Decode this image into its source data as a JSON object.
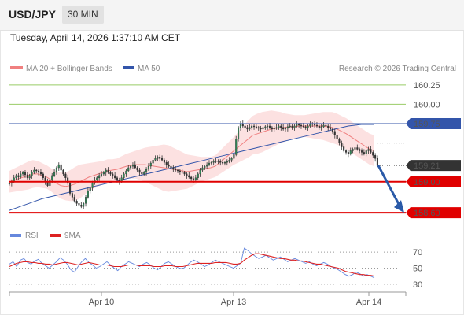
{
  "header": {
    "symbol": "USD/JPY",
    "timeframe": "30 MIN"
  },
  "timestamp": "Tuesday, April 14, 2026 1:37:10 AM CET",
  "legend": {
    "ma": "MA 20 + Bollinger Bands",
    "ma50": "MA 50",
    "rsi": "RSI",
    "ma9": "9MA",
    "credit": "Research © 2026 Trading Central"
  },
  "colors": {
    "pivot": "#e00000",
    "target": "#e00000",
    "resistance": "#99cc66",
    "ma50": "#3355aa",
    "ma20": "#f08080",
    "band": "#fcdede",
    "current": "#333333",
    "rsi": "#6688dd",
    "rsi_ma": "#dd2222",
    "arrow": "#2a5aa8"
  },
  "chart_data": [
    {
      "type": "candlestick",
      "x_ticks": [
        "Apr 10",
        "Apr 13",
        "Apr 14"
      ],
      "ylim": [
        158.55,
        160.35
      ],
      "levels": [
        {
          "value": 160.25,
          "label": "160.25",
          "kind": "resistance"
        },
        {
          "value": 160.0,
          "label": "160.00",
          "kind": "resistance"
        },
        {
          "value": 159.75,
          "label": "159.75",
          "kind": "ma50"
        },
        {
          "value": 159.21,
          "label": "159.21",
          "kind": "current"
        },
        {
          "value": 159.0,
          "label": "159.00",
          "kind": "pivot"
        },
        {
          "value": 158.6,
          "label": "158.60",
          "kind": "target"
        }
      ],
      "close": [
        158.98,
        159.0,
        159.05,
        159.08,
        159.06,
        159.1,
        159.12,
        159.09,
        159.05,
        159.08,
        159.12,
        159.15,
        159.14,
        159.12,
        159.1,
        159.05,
        159.0,
        158.95,
        159.02,
        159.08,
        159.12,
        159.18,
        159.22,
        159.15,
        159.1,
        159.05,
        158.98,
        158.85,
        158.8,
        158.75,
        158.72,
        158.7,
        158.68,
        158.72,
        158.8,
        158.88,
        158.92,
        158.98,
        159.02,
        159.05,
        159.08,
        159.1,
        159.12,
        159.15,
        159.12,
        159.1,
        159.08,
        159.05,
        159.02,
        159.0,
        159.05,
        159.1,
        159.14,
        159.18,
        159.2,
        159.22,
        159.18,
        159.15,
        159.12,
        159.1,
        159.12,
        159.16,
        159.2,
        159.24,
        159.28,
        159.3,
        159.32,
        159.3,
        159.28,
        159.25,
        159.22,
        159.2,
        159.18,
        159.16,
        159.15,
        159.14,
        159.13,
        159.12,
        159.1,
        159.08,
        159.06,
        159.04,
        159.02,
        159.05,
        159.1,
        159.15,
        159.18,
        159.2,
        159.22,
        159.24,
        159.25,
        159.26,
        159.27,
        159.26,
        159.25,
        159.24,
        159.25,
        159.26,
        159.28,
        159.3,
        159.35,
        159.55,
        159.7,
        159.75,
        159.72,
        159.7,
        159.68,
        159.7,
        159.72,
        159.71,
        159.7,
        159.69,
        159.68,
        159.7,
        159.71,
        159.72,
        159.7,
        159.68,
        159.69,
        159.7,
        159.72,
        159.7,
        159.68,
        159.69,
        159.71,
        159.72,
        159.7,
        159.72,
        159.74,
        159.73,
        159.72,
        159.71,
        159.7,
        159.72,
        159.74,
        159.75,
        159.73,
        159.72,
        159.7,
        159.71,
        159.73,
        159.72,
        159.7,
        159.68,
        159.65,
        159.6,
        159.55,
        159.5,
        159.45,
        159.4,
        159.38,
        159.36,
        159.4,
        159.42,
        159.44,
        159.42,
        159.4,
        159.38,
        159.36,
        159.4,
        159.42,
        159.38,
        159.34,
        159.3,
        159.21
      ],
      "ma20": [
        159.0,
        159.02,
        159.04,
        159.06,
        159.08,
        159.1,
        159.1,
        159.08,
        159.06,
        159.02,
        158.98,
        158.95,
        158.94,
        158.95,
        158.97,
        159.0,
        159.03,
        159.06,
        159.08,
        159.1,
        159.12,
        159.14,
        159.15,
        159.16,
        159.18,
        159.2,
        159.21,
        159.22,
        159.22,
        159.22,
        159.21,
        159.2,
        159.19,
        159.18,
        159.17,
        159.16,
        159.15,
        159.14,
        159.13,
        159.14,
        159.15,
        159.16,
        159.17,
        159.18,
        159.2,
        159.25,
        159.3,
        159.35,
        159.4,
        159.45,
        159.5,
        159.55,
        159.6,
        159.62,
        159.64,
        159.66,
        159.68,
        159.69,
        159.7,
        159.7,
        159.71,
        159.71,
        159.72,
        159.72,
        159.72,
        159.72,
        159.72,
        159.72,
        159.71,
        159.7,
        159.68,
        159.65,
        159.62,
        159.58,
        159.54,
        159.5,
        159.46,
        159.42,
        159.4
      ],
      "ma50": [
        158.63,
        158.66,
        158.69,
        158.72,
        158.75,
        158.78,
        158.8,
        158.82,
        158.84,
        158.86,
        158.88,
        158.9,
        158.92,
        158.94,
        158.96,
        158.98,
        159.0,
        159.02,
        159.04,
        159.06,
        159.08,
        159.1,
        159.12,
        159.14,
        159.16,
        159.18,
        159.2,
        159.22,
        159.24,
        159.26,
        159.28,
        159.3,
        159.32,
        159.34,
        159.36,
        159.38,
        159.4,
        159.42,
        159.44,
        159.46,
        159.48,
        159.5,
        159.52,
        159.54,
        159.56,
        159.58,
        159.6,
        159.62,
        159.64,
        159.66,
        159.68,
        159.7,
        159.72,
        159.73,
        159.74,
        159.74,
        159.74
      ],
      "band_width": [
        0.14,
        0.15,
        0.16,
        0.17,
        0.18,
        0.18,
        0.17,
        0.16,
        0.15,
        0.15,
        0.16,
        0.17,
        0.18,
        0.2,
        0.22,
        0.22,
        0.2,
        0.18,
        0.17,
        0.16,
        0.15,
        0.15,
        0.14,
        0.14,
        0.15,
        0.16,
        0.17,
        0.18,
        0.2,
        0.22,
        0.24,
        0.26,
        0.28,
        0.3,
        0.3,
        0.28,
        0.26,
        0.24,
        0.22,
        0.2,
        0.18,
        0.16,
        0.15,
        0.14,
        0.14,
        0.15,
        0.16,
        0.17,
        0.18,
        0.2,
        0.22,
        0.24,
        0.25,
        0.26,
        0.26,
        0.25,
        0.24,
        0.22,
        0.2,
        0.18,
        0.16,
        0.15,
        0.14,
        0.14,
        0.15,
        0.16,
        0.17,
        0.18,
        0.19,
        0.2,
        0.2,
        0.2,
        0.2,
        0.2,
        0.2,
        0.2,
        0.2,
        0.2,
        0.2
      ],
      "forecast": {
        "from": 159.21,
        "to": 158.6
      }
    },
    {
      "type": "line",
      "title": "RSI",
      "ylim": [
        25,
        78
      ],
      "y_ticks": [
        70,
        50,
        30
      ],
      "series": [
        {
          "name": "RSI",
          "values": [
            55,
            58,
            52,
            60,
            62,
            57,
            55,
            59,
            61,
            56,
            53,
            50,
            54,
            58,
            63,
            60,
            55,
            48,
            45,
            52,
            58,
            62,
            57,
            54,
            50,
            52,
            55,
            58,
            54,
            50,
            47,
            52,
            55,
            58,
            56,
            54,
            52,
            55,
            57,
            54,
            50,
            48,
            52,
            56,
            58,
            55,
            52,
            50,
            49,
            53,
            57,
            60,
            58,
            55,
            52,
            54,
            57,
            60,
            58,
            56,
            54,
            52,
            50,
            53,
            56,
            75,
            72,
            68,
            65,
            62,
            64,
            66,
            63,
            60,
            62,
            64,
            61,
            58,
            60,
            62,
            60,
            58,
            56,
            58,
            55,
            53,
            55,
            57,
            55,
            52,
            50,
            48,
            45,
            42,
            40,
            42,
            45,
            43,
            40,
            42,
            40,
            38
          ]
        },
        {
          "name": "9MA",
          "values": [
            52,
            54,
            56,
            57,
            58,
            58,
            57,
            57,
            56,
            56,
            55,
            55,
            54,
            55,
            56,
            57,
            57,
            56,
            55,
            54,
            55,
            56,
            57,
            56,
            55,
            54,
            54,
            54,
            53,
            52,
            52,
            52,
            53,
            54,
            54,
            54,
            53,
            53,
            53,
            53,
            52,
            52,
            52,
            53,
            53,
            53,
            52,
            52,
            52,
            53,
            54,
            55,
            56,
            56,
            56,
            56,
            56,
            57,
            57,
            57,
            57,
            56,
            55,
            55,
            56,
            60,
            63,
            66,
            68,
            68,
            67,
            66,
            65,
            64,
            63,
            62,
            62,
            61,
            60,
            60,
            59,
            59,
            58,
            57,
            56,
            55,
            55,
            54,
            53,
            52,
            51,
            50,
            48,
            46,
            45,
            44,
            43,
            42,
            42,
            41,
            41,
            40
          ]
        }
      ]
    }
  ]
}
